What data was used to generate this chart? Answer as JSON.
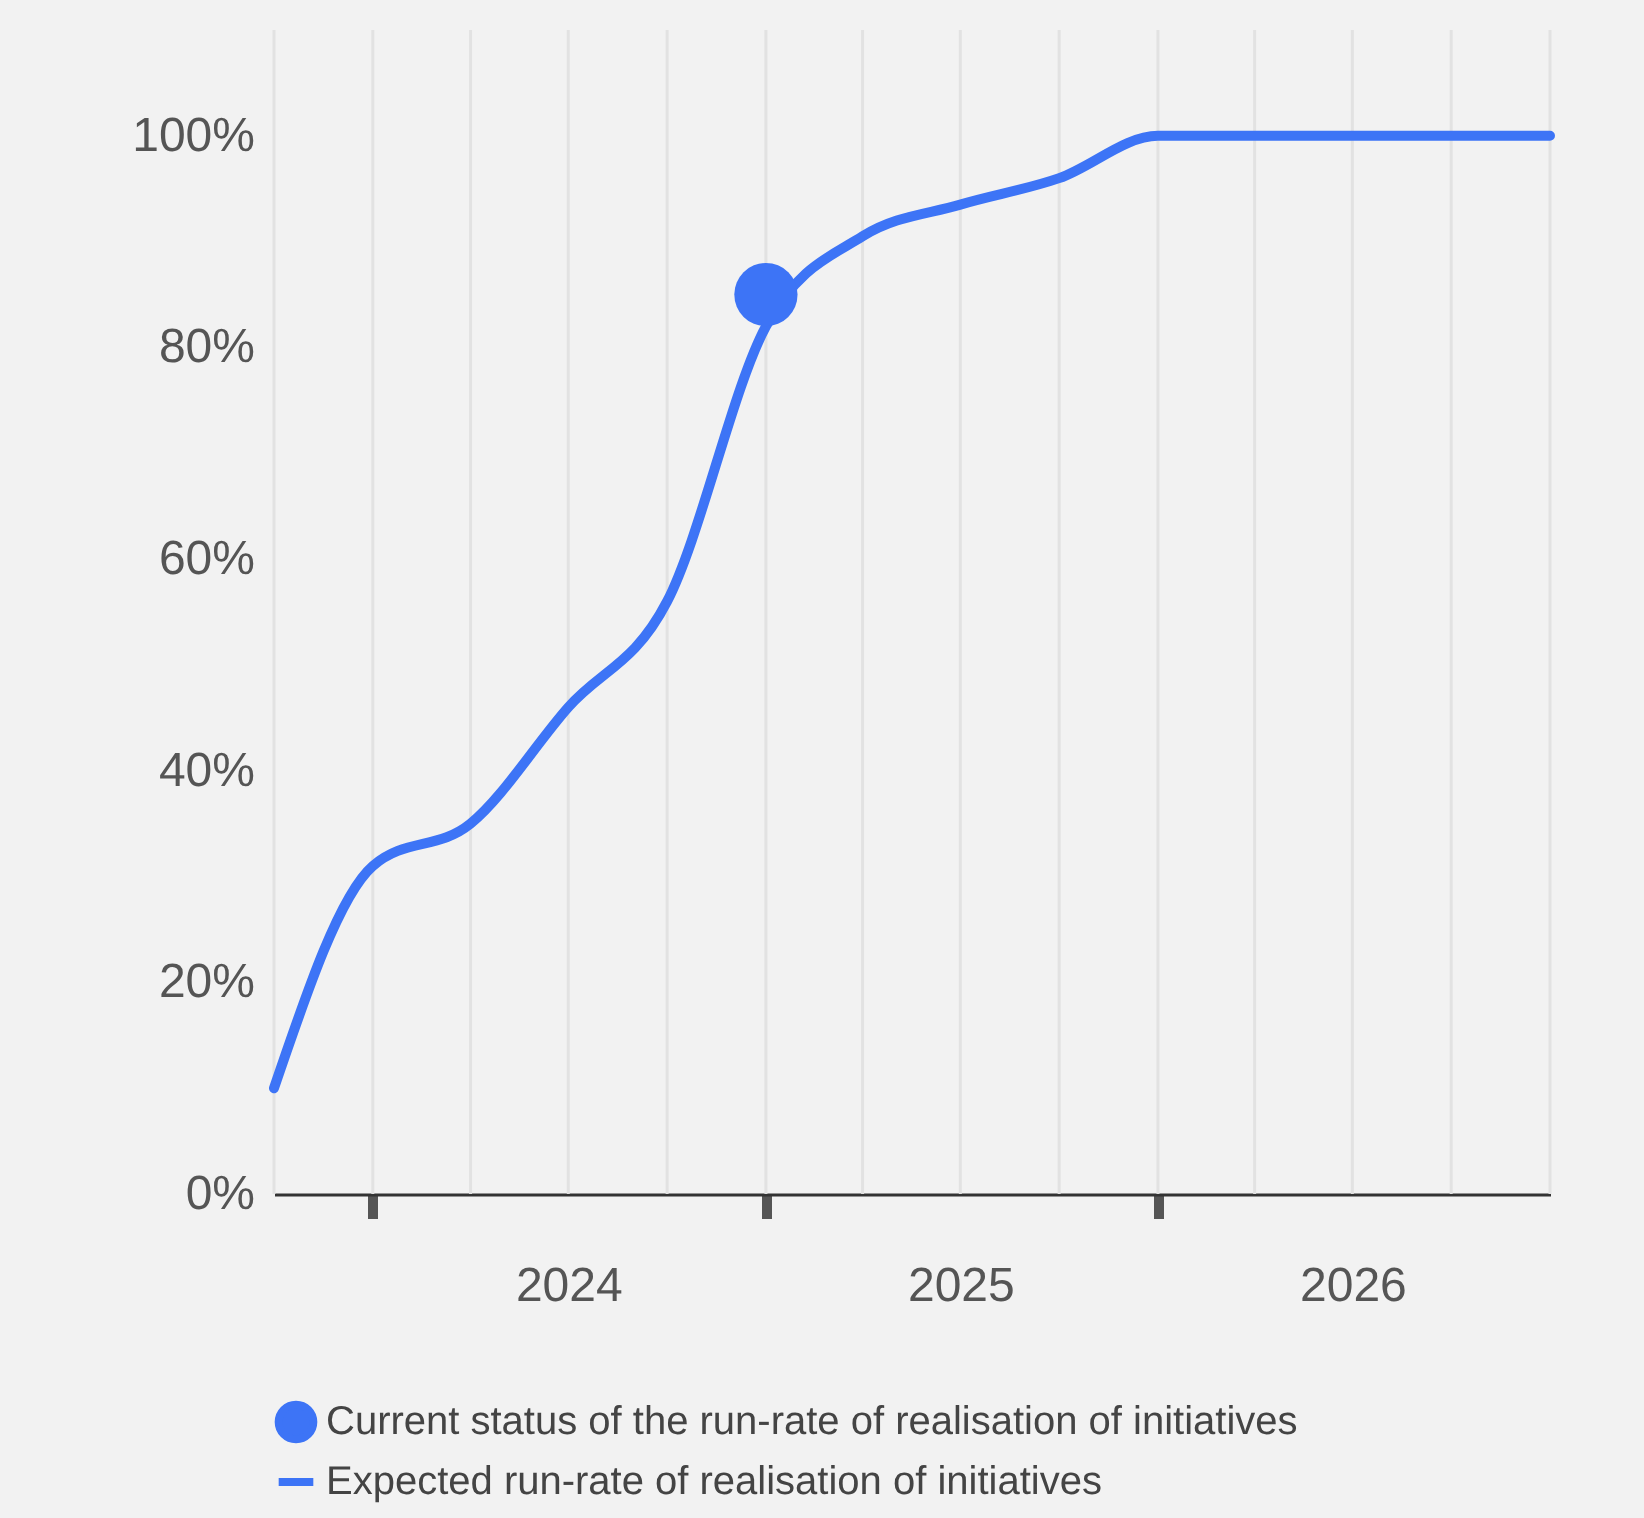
{
  "chart_data": {
    "type": "line",
    "xlim": [
      "2023-10-01",
      "2027-01-01"
    ],
    "ylim": [
      0,
      110
    ],
    "xticks": [
      {
        "value": "2024-01-01",
        "label": null
      },
      {
        "value": "2025-01-01",
        "label": null
      },
      {
        "value": "2026-01-01",
        "label": null
      },
      {
        "value": "2024-07-01",
        "label": "2024"
      },
      {
        "value": "2025-07-01",
        "label": "2025"
      },
      {
        "value": "2026-07-01",
        "label": "2026"
      }
    ],
    "yticks": [
      {
        "value": 0,
        "label": "0%"
      },
      {
        "value": 20,
        "label": "20%"
      },
      {
        "value": 40,
        "label": "40%"
      },
      {
        "value": 60,
        "label": "60%"
      },
      {
        "value": 80,
        "label": "80%"
      },
      {
        "value": 100,
        "label": "100%"
      }
    ],
    "grid": "x",
    "legend": "bottom",
    "series": [
      {
        "name": "Current status of the run-rate of realisation of initiatives",
        "type": "scatter",
        "marker": "circle",
        "color": "#3d74f6",
        "x": [
          "2025-01-01"
        ],
        "values": [
          85
        ]
      },
      {
        "name": "Expected run-rate of realisation of initiatives",
        "color": "#3d74f6",
        "x": [
          "2023-10-01",
          "2024-01-01",
          "2024-04-01",
          "2024-07-01",
          "2024-10-01",
          "2025-01-01",
          "2025-04-01",
          "2025-07-01",
          "2025-10-01",
          "2026-01-01",
          "2026-04-01",
          "2026-07-01",
          "2026-10-01",
          "2027-01-01"
        ],
        "values": [
          10,
          31,
          35,
          46,
          56,
          82,
          90.5,
          93.5,
          96,
          100,
          100,
          100,
          100,
          100
        ]
      }
    ]
  }
}
